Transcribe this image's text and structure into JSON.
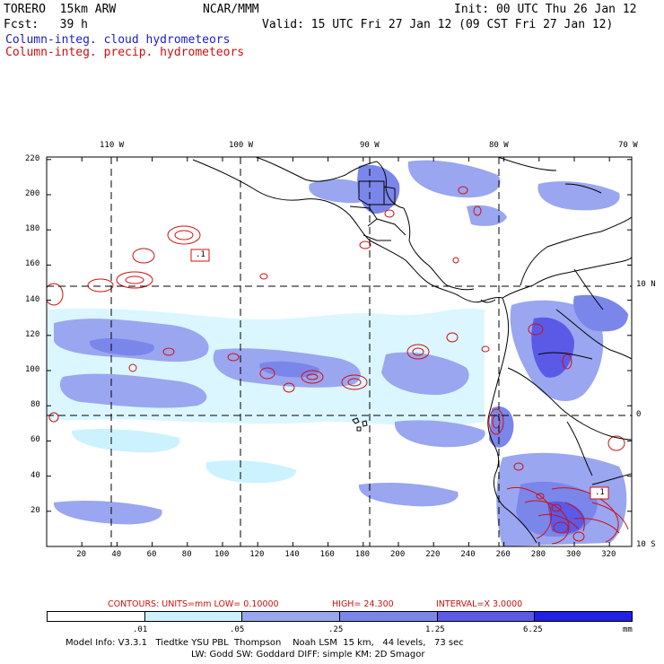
{
  "header": {
    "model": "TORERO  15km ARW",
    "org": "NCAR/MMM",
    "init": "Init: 00 UTC Thu 26 Jan 12",
    "forecast": "Fcst:   39 h",
    "valid": "Valid: 15 UTC Fri 27 Jan 12 (09 CST Fri 27 Jan 12)",
    "field1": "Column-integ. cloud hydrometeors",
    "field2": "Column-integ. precip. hydrometeors"
  },
  "colors": {
    "cloud_text": "#1c1ccc",
    "precip_text": "#cc1010",
    "shade1": "#ccf2ff",
    "shade2": "#9aa6f0",
    "shade3": "#7b86ea",
    "shade4": "#5a5ae6",
    "shade5": "#2020e6",
    "contour": "#d01010"
  },
  "map": {
    "lon_labels": [
      "110 W",
      "100 W",
      "90 W",
      "80 W",
      "70 W"
    ],
    "lat_labels": [
      "10 N",
      "0",
      "10 S"
    ],
    "x_ticks": [
      "20",
      "40",
      "60",
      "80",
      "100",
      "120",
      "140",
      "160",
      "180",
      "200",
      "220",
      "240",
      "260",
      "280",
      "300",
      "320"
    ],
    "y_ticks": [
      "20",
      "40",
      "60",
      "80",
      "100",
      "120",
      "140",
      "160",
      "180",
      "200",
      "220"
    ],
    "contour_labels": [
      ".1",
      ".1"
    ]
  },
  "contour_info": {
    "contours": "CONTOURS:  UNITS=mm  LOW= 0.10000",
    "high": "HIGH=  24.300",
    "interval": "INTERVAL=X  3.0000"
  },
  "colorbar": {
    "labels": [
      ".01",
      ".05",
      ".25",
      "1.25",
      "6.25"
    ],
    "units": "mm",
    "colors": [
      "#ffffff",
      "#ccf2ff",
      "#9aa6f0",
      "#7b86ea",
      "#5a5ae6",
      "#2020e6"
    ]
  },
  "footer": {
    "line1": "Model Info: V3.3.1   Tiedtke YSU PBL  Thompson    Noah LSM  15 km,   44 levels,   73 sec",
    "line2": "LW: Godd SW: Goddard DIFF: simple KM: 2D Smagor"
  }
}
